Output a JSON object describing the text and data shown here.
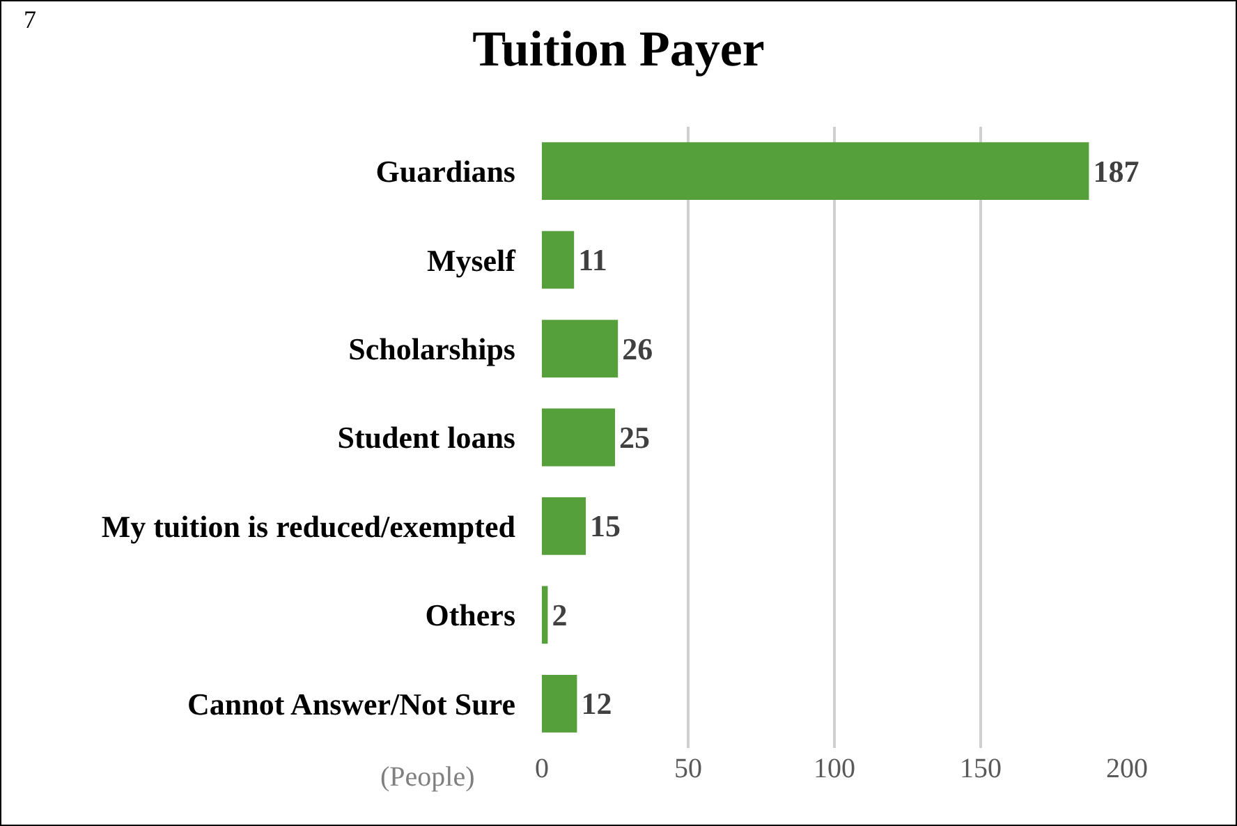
{
  "chart_data": {
    "type": "bar",
    "orientation": "horizontal",
    "title": "Tuition Payer",
    "xlabel": "(People)",
    "annotations": [
      "7"
    ],
    "categories": [
      "Guardians",
      "Myself",
      "Scholarships",
      "Student loans",
      "My tuition is reduced/exempted",
      "Others",
      "Cannot Answer/Not Sure"
    ],
    "values": [
      187,
      11,
      26,
      25,
      15,
      2,
      12
    ],
    "color": "#56a03c",
    "data_labels": true,
    "grid": "x",
    "xlim": [
      0,
      200
    ],
    "xticks": [
      0,
      50,
      100,
      150,
      200
    ]
  }
}
